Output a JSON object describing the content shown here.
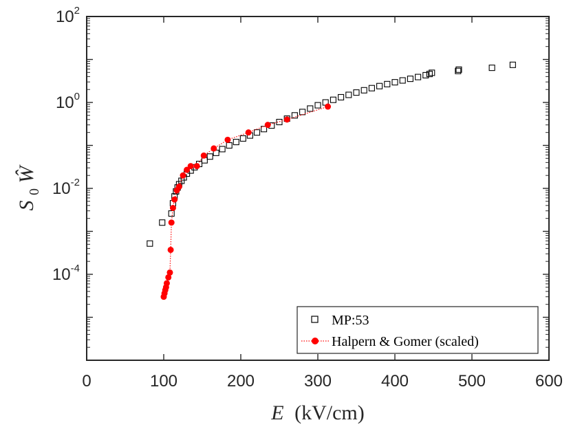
{
  "chart_data": {
    "type": "scatter",
    "x_scale": "linear",
    "y_scale": "log",
    "xlim": [
      0,
      600
    ],
    "ylim": [
      1e-06,
      100
    ],
    "x_ticks": [
      0,
      100,
      200,
      300,
      400,
      500,
      600
    ],
    "x_tick_labels": [
      "0",
      "100",
      "200",
      "300",
      "400",
      "500",
      "600"
    ],
    "y_tick_labels": [
      {
        "base": "10",
        "exp": "-4",
        "value": 0.0001
      },
      {
        "base": "10",
        "exp": "-2",
        "value": 0.01
      },
      {
        "base": "10",
        "exp": "0",
        "value": 1
      },
      {
        "base": "10",
        "exp": "2",
        "value": 100
      }
    ],
    "xlabel": {
      "symbol": "E",
      "unit": "(kV/cm)"
    },
    "ylabel": {
      "symbol": "S",
      "sub": "0",
      "symbol2": "Ŵ"
    },
    "grid": false,
    "legend_position": "bottom-right",
    "series": [
      {
        "name": "MP:53",
        "marker": "open-square",
        "line": "none",
        "color": "#000000",
        "x": [
          82,
          98,
          110,
          112,
          114,
          116,
          118,
          120,
          123,
          126,
          130,
          135,
          140,
          146,
          153,
          160,
          168,
          176,
          185,
          194,
          203,
          212,
          221,
          230,
          240,
          250,
          260,
          270,
          280,
          290,
          300,
          310,
          320,
          330,
          340,
          350,
          360,
          370,
          380,
          390,
          400,
          410,
          420,
          430,
          440,
          445,
          448,
          482,
          483,
          526,
          553
        ],
        "y": [
          0.00052,
          0.0016,
          0.0026,
          0.0045,
          0.0065,
          0.0085,
          0.0105,
          0.0125,
          0.015,
          0.018,
          0.022,
          0.026,
          0.031,
          0.037,
          0.045,
          0.055,
          0.067,
          0.082,
          0.1,
          0.12,
          0.145,
          0.17,
          0.2,
          0.24,
          0.29,
          0.35,
          0.42,
          0.5,
          0.6,
          0.72,
          0.86,
          1.0,
          1.15,
          1.32,
          1.5,
          1.7,
          1.92,
          2.15,
          2.4,
          2.67,
          2.95,
          3.25,
          3.55,
          3.9,
          4.3,
          4.6,
          4.9,
          5.4,
          5.8,
          6.4,
          7.5
        ]
      },
      {
        "name": "Halpern & Gomer (scaled)",
        "marker": "filled-circle",
        "line": "dotted",
        "color": "#ff0000",
        "x": [
          100,
          101,
          102,
          103,
          104,
          106,
          108,
          109,
          110,
          112,
          114,
          117,
          120,
          125,
          130,
          135,
          143,
          152,
          165,
          183,
          210,
          235,
          260,
          313
        ],
        "y": [
          3e-05,
          3.6e-05,
          4.3e-05,
          5e-05,
          6.2e-05,
          8.5e-05,
          0.00011,
          0.00037,
          0.0016,
          0.0035,
          0.0055,
          0.009,
          0.011,
          0.02,
          0.027,
          0.033,
          0.033,
          0.058,
          0.085,
          0.135,
          0.2,
          0.3,
          0.4,
          0.8
        ]
      }
    ]
  }
}
